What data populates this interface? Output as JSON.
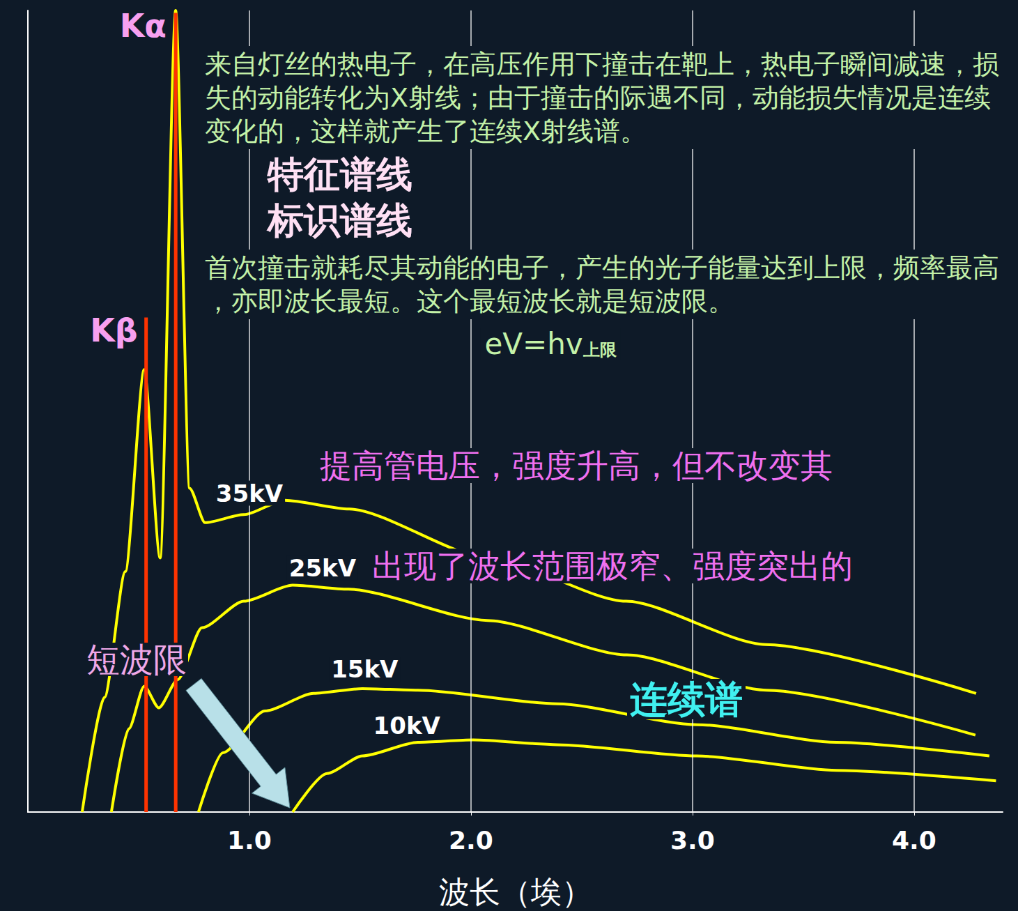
{
  "chart_data": {
    "type": "line",
    "x_label": "波长（埃）",
    "xlim": [
      0,
      4.4
    ],
    "xticks": [
      {
        "value": 1,
        "label": "1.0"
      },
      {
        "value": 2,
        "label": "2.0"
      },
      {
        "value": 3,
        "label": "3.0"
      },
      {
        "value": 4,
        "label": "4.0"
      }
    ],
    "ylim": [
      0,
      100
    ],
    "yticks": [],
    "grid": true,
    "tick_labels": "x",
    "series": [
      {
        "name": "35kV",
        "type": "line",
        "color": "#ffff00",
        "marker": "none",
        "line_style": "solid",
        "x": [
          0.245,
          0.346,
          0.44,
          0.525,
          0.597,
          0.667,
          0.73,
          0.8,
          0.975,
          1.16,
          1.45,
          2.08,
          2.7,
          3.33,
          4.28
        ],
        "values": [
          0,
          14.3,
          30.0,
          55.2,
          31.7,
          100,
          40.4,
          36.1,
          37.1,
          38.9,
          37.8,
          31.7,
          26.3,
          20.9,
          14.8
        ]
      },
      {
        "name": "25kV",
        "type": "line",
        "color": "#ffff00",
        "marker": "none",
        "line_style": "solid",
        "x": [
          0.377,
          0.456,
          0.525,
          0.591,
          0.676,
          0.786,
          0.975,
          1.195,
          1.447,
          2.075,
          2.704,
          3.333,
          4.277
        ],
        "values": [
          0,
          10.4,
          15.7,
          13.0,
          16.5,
          23.0,
          26.3,
          28.3,
          27.8,
          23.9,
          19.6,
          15.2,
          9.6
        ]
      },
      {
        "name": "15kV",
        "type": "line",
        "color": "#ffff00",
        "marker": "none",
        "line_style": "solid",
        "x": [
          0.77,
          0.88,
          1.07,
          1.29,
          1.51,
          1.76,
          2.39,
          3.02,
          3.65,
          4.34
        ],
        "values": [
          0,
          7.4,
          12.6,
          14.8,
          15.4,
          15.2,
          13.5,
          10.9,
          8.7,
          7.0
        ]
      },
      {
        "name": "10kV",
        "type": "line",
        "color": "#ffff00",
        "marker": "none",
        "line_style": "solid",
        "x": [
          1.195,
          1.35,
          1.51,
          1.76,
          2.01,
          2.39,
          3.02,
          3.65,
          4.37
        ],
        "values": [
          0,
          4.8,
          7.0,
          8.7,
          9.0,
          8.4,
          7.0,
          5.2,
          3.9
        ]
      },
      {
        "name": "Kα",
        "type": "bar",
        "color": "#ff3300",
        "x": [
          0.676
        ],
        "values": [
          99.7
        ]
      },
      {
        "name": "Kβ",
        "type": "bar",
        "color": "#ff3300",
        "x": [
          0.525
        ],
        "values": [
          61.7
        ]
      }
    ],
    "annotations": {
      "paragraph_1": "来自灯丝的热电子，在高压作用下撞击在靶上，热电子瞬间减速，损失的动能转化为X射线；由于撞击的际遇不同，动能损失情况是连续变化的，这样就产生了连续X射线谱。",
      "label_characteristic": "特征谱线",
      "label_identification": "标识谱线",
      "paragraph_2": "首次撞击就耗尽其动能的电子，产生的光子能量达到上限，频率最高，亦即波长最短。这个最短波长就是短波限。",
      "formula": {
        "main": "eV=hv",
        "sub": "上限"
      },
      "voltage_note": "提高管电压，强度升高，但不改变其",
      "line_note": "出现了波长范围极窄、强度突出的",
      "short_wave_limit": "短波限",
      "continuous": "连续谱"
    }
  }
}
